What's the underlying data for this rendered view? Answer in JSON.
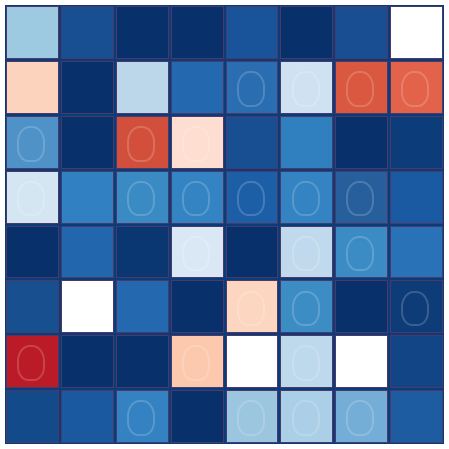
{
  "grid": {
    "rows": 8,
    "cols": 8,
    "colors": [
      [
        "#9ecae1",
        "#184f93",
        "#08306b",
        "#08306b",
        "#19539a",
        "#08306b",
        "#194e93",
        "#ffffff"
      ],
      [
        "#fcd3bd",
        "#08306b",
        "#bcd7ea",
        "#2468b0",
        "#2a6db1",
        "#cfe2f1",
        "#d9583f",
        "#e2634a"
      ],
      [
        "#4e92c8",
        "#08306b",
        "#d2503b",
        "#fdded0",
        "#184f93",
        "#3080c0",
        "#08306b",
        "#0c3d7a"
      ],
      [
        "#d5e6f3",
        "#3181c2",
        "#3a8ac3",
        "#3484c3",
        "#1d5fa6",
        "#3483c2",
        "#275e9c",
        "#1a5aa2"
      ],
      [
        "#08306b",
        "#2266ae",
        "#0a3672",
        "#d9e8f4",
        "#08306b",
        "#c1d9ec",
        "#3b8bc4",
        "#2a72b8"
      ],
      [
        "#18508f",
        "#ffffff",
        "#2469b0",
        "#08306b",
        "#fdd6c1",
        "#3d8dc5",
        "#08306b",
        "#0d3c78"
      ],
      [
        "#bb1b26",
        "#08306b",
        "#08306b",
        "#fcc9ae",
        "#ffffff",
        "#bed8ec",
        "#ffffff",
        "#114585"
      ],
      [
        "#134a8a",
        "#1a589f",
        "#3482c2",
        "#08306b",
        "#9cc5e0",
        "#aacfe6",
        "#74aed7",
        "#1e5ca1"
      ]
    ],
    "faces": [
      [
        1,
        4
      ],
      [
        1,
        5
      ],
      [
        1,
        6
      ],
      [
        1,
        7
      ],
      [
        2,
        0
      ],
      [
        2,
        2
      ],
      [
        2,
        3
      ],
      [
        3,
        0
      ],
      [
        3,
        2
      ],
      [
        3,
        3
      ],
      [
        3,
        4
      ],
      [
        3,
        5
      ],
      [
        3,
        6
      ],
      [
        4,
        3
      ],
      [
        4,
        5
      ],
      [
        4,
        6
      ],
      [
        5,
        4
      ],
      [
        5,
        5
      ],
      [
        5,
        7
      ],
      [
        6,
        0
      ],
      [
        6,
        3
      ],
      [
        6,
        5
      ],
      [
        7,
        2
      ],
      [
        7,
        4
      ],
      [
        7,
        5
      ],
      [
        7,
        6
      ]
    ]
  }
}
